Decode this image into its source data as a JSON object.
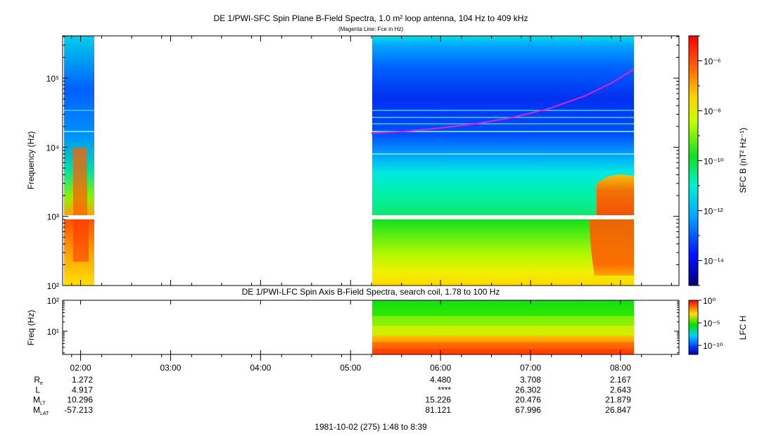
{
  "chart_data": [
    {
      "type": "heatmap",
      "title": "DE 1/PWI-SFC  Spin Plane B-Field Spectra, 1.0 m² loop antenna, 104 Hz to 409 kHz",
      "subtitle": "(Magenta Line: Fce in Hz)",
      "ylabel": "Frequency (Hz)",
      "ylim": [
        100,
        409000
      ],
      "yscale": "log",
      "y_ticks": [
        "10²",
        "10³",
        "10⁴",
        "10⁵"
      ],
      "colorbar": {
        "label": "SFC B (nT² Hz⁻¹)",
        "scale": "log",
        "range": [
          1e-15,
          1e-05
        ],
        "ticks": [
          "10⁻¹⁴",
          "10⁻¹²",
          "10⁻¹⁰",
          "10⁻⁸",
          "10⁻⁶"
        ]
      },
      "data_intervals_hours": [
        [
          1.8,
          2.15
        ],
        [
          5.23,
          8.15
        ]
      ],
      "series": [
        {
          "name": "Fce",
          "color": "#e020e0",
          "x": [
            5.23,
            5.6,
            6.0,
            6.4,
            6.8,
            7.2,
            7.6,
            7.9,
            8.15
          ],
          "y": [
            16000,
            17000,
            19000,
            22000,
            27000,
            36000,
            55000,
            85000,
            135000
          ]
        }
      ]
    },
    {
      "type": "heatmap",
      "title": "DE 1/PWI-LFC  Spin Axis B-Field Spectra, search coil, 1.78 to 100 Hz",
      "ylabel": "Freq (Hz)",
      "ylim": [
        1.78,
        100
      ],
      "yscale": "log",
      "y_ticks": [
        "10¹",
        "10²"
      ],
      "colorbar": {
        "label": "LFC H",
        "scale": "log",
        "range": [
          1e-12,
          1
        ],
        "ticks": [
          "10⁻¹⁰",
          "10⁻⁵",
          "10⁰"
        ]
      },
      "data_intervals_hours": [
        [
          5.23,
          8.15
        ]
      ]
    }
  ],
  "x_axis": {
    "ticks": [
      "02:00",
      "03:00",
      "04:00",
      "05:00",
      "06:00",
      "07:00",
      "08:00"
    ],
    "tick_hours": [
      2,
      3,
      4,
      5,
      6,
      7,
      8
    ],
    "range_hours": [
      1.8,
      8.65
    ]
  },
  "ephemeris": {
    "rows": [
      {
        "label": "R",
        "sub": "e",
        "values": [
          "1.272",
          "",
          "",
          "",
          "4.480",
          "3.708",
          "2.167"
        ]
      },
      {
        "label": "L",
        "sub": "",
        "values": [
          "4.917",
          "",
          "",
          "",
          "****",
          "26.302",
          "2.643"
        ]
      },
      {
        "label": "M",
        "sub": "LT",
        "values": [
          "10.296",
          "",
          "",
          "",
          "15.226",
          "20.476",
          "21.879"
        ]
      },
      {
        "label": "M",
        "sub": "LAT",
        "values": [
          "-57.213",
          "",
          "",
          "",
          "81.121",
          "67.996",
          "26.847"
        ]
      }
    ]
  },
  "footer": "1981-10-02 (275) 1:48 to 8:39"
}
